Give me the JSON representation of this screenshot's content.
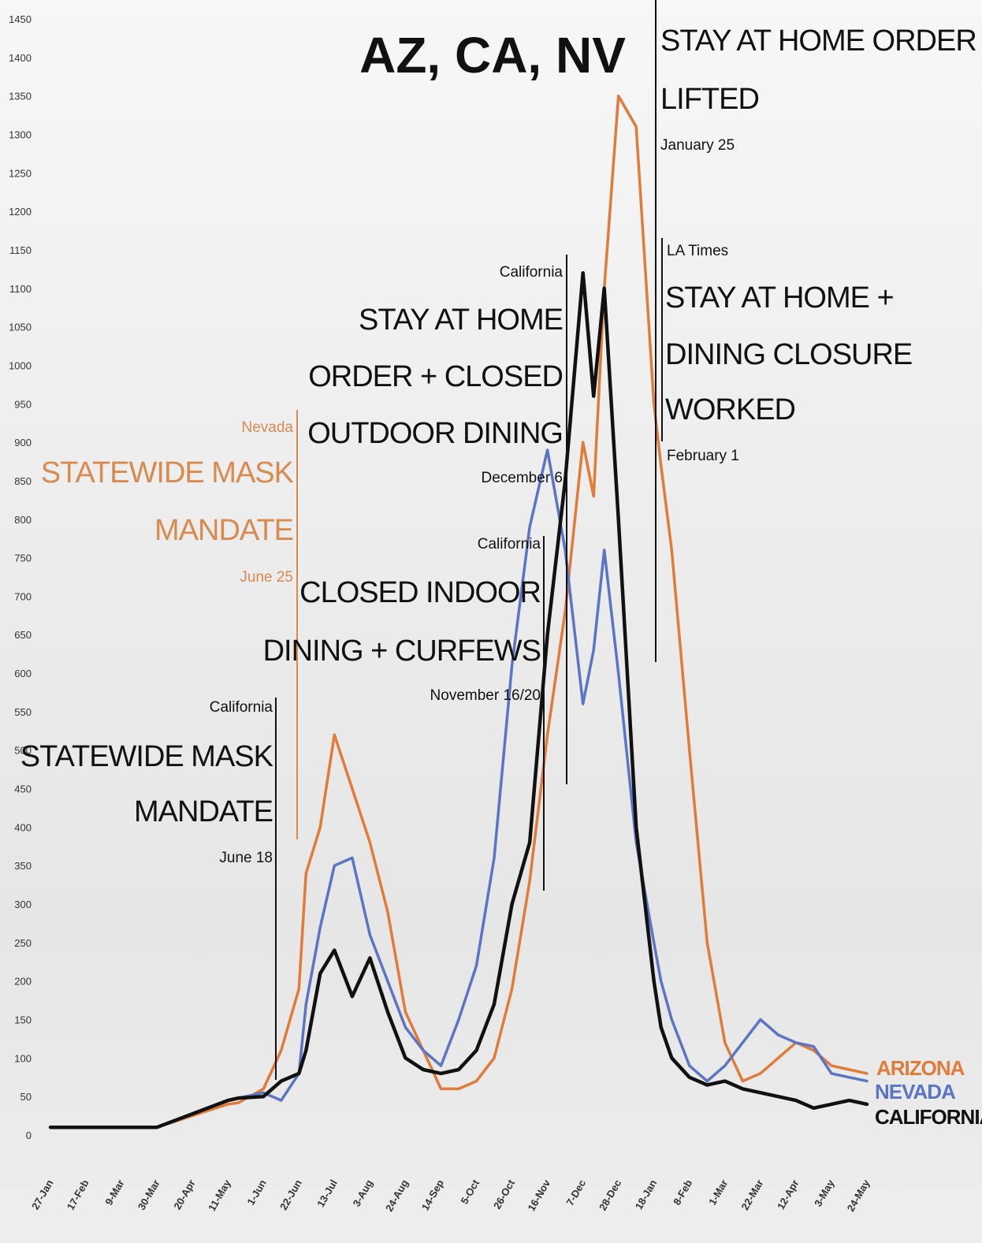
{
  "chart_data": {
    "type": "line",
    "title": "AZ, CA, NV",
    "xlabel": "",
    "ylabel": "",
    "ylim": [
      0,
      1450
    ],
    "yticks": [
      0,
      50,
      100,
      150,
      200,
      250,
      300,
      350,
      400,
      450,
      500,
      550,
      600,
      650,
      700,
      750,
      800,
      850,
      900,
      950,
      1000,
      1050,
      1100,
      1150,
      1200,
      1250,
      1300,
      1350,
      1400,
      1450
    ],
    "x_categories": [
      "27-Jan",
      "17-Feb",
      "9-Mar",
      "30-Mar",
      "20-Apr",
      "11-May",
      "1-Jun",
      "22-Jun",
      "13-Jul",
      "3-Aug",
      "24-Aug",
      "14-Sep",
      "5-Oct",
      "26-Oct",
      "16-Nov",
      "7-Dec",
      "28-Dec",
      "18-Jan",
      "8-Feb",
      "1-Mar",
      "22-Mar",
      "12-Apr",
      "3-May",
      "24-May"
    ],
    "grid": false,
    "legend_placement": "right",
    "series": [
      {
        "name": "ARIZONA",
        "color": "#e07b39",
        "x": [
          0,
          3,
          5,
          5.3,
          6,
          6.5,
          7,
          7.2,
          7.6,
          8,
          8.5,
          9,
          9.5,
          10,
          10.5,
          11,
          11.5,
          12,
          12.5,
          13,
          13.5,
          14,
          14.5,
          15,
          15.3,
          15.6,
          16,
          16.5,
          17,
          17.2,
          17.5,
          18,
          18.5,
          19,
          19.5,
          20,
          20.5,
          21,
          21.5,
          22,
          22.5,
          23
        ],
        "y": [
          10,
          10,
          40,
          42,
          60,
          110,
          190,
          340,
          400,
          520,
          450,
          380,
          290,
          160,
          110,
          60,
          60,
          70,
          100,
          190,
          330,
          520,
          680,
          900,
          830,
          1100,
          1350,
          1310,
          950,
          870,
          760,
          500,
          250,
          120,
          70,
          80,
          100,
          120,
          110,
          90,
          85,
          80
        ]
      },
      {
        "name": "NEVADA",
        "color": "#5a75c3",
        "x": [
          0,
          3,
          5,
          5.3,
          6,
          6.5,
          7,
          7.2,
          7.6,
          8,
          8.5,
          9,
          9.5,
          10,
          10.5,
          11,
          11.5,
          12,
          12.5,
          13,
          13.5,
          14,
          14.5,
          15,
          15.3,
          15.6,
          16,
          16.5,
          17,
          17.2,
          17.5,
          18,
          18.5,
          19,
          19.5,
          20,
          20.5,
          21,
          21.5,
          22,
          22.5,
          23
        ],
        "y": [
          10,
          10,
          45,
          48,
          55,
          45,
          80,
          170,
          270,
          350,
          360,
          260,
          200,
          140,
          110,
          90,
          150,
          220,
          360,
          610,
          790,
          890,
          760,
          560,
          630,
          760,
          600,
          380,
          250,
          200,
          150,
          90,
          70,
          90,
          120,
          150,
          130,
          120,
          115,
          80,
          75,
          70
        ]
      },
      {
        "name": "CALIFORNIA",
        "color": "#111111",
        "x": [
          0,
          3,
          5,
          5.3,
          6,
          6.5,
          7,
          7.2,
          7.6,
          8,
          8.5,
          9,
          9.5,
          10,
          10.5,
          11,
          11.5,
          12,
          12.5,
          13,
          13.5,
          14,
          14.5,
          15,
          15.3,
          15.6,
          16,
          16.5,
          17,
          17.2,
          17.5,
          18,
          18.5,
          19,
          19.5,
          20,
          20.5,
          21,
          21.5,
          22,
          22.5,
          23
        ],
        "y": [
          10,
          10,
          45,
          48,
          50,
          70,
          80,
          110,
          210,
          240,
          180,
          230,
          160,
          100,
          85,
          80,
          85,
          110,
          170,
          300,
          380,
          650,
          850,
          1120,
          960,
          1100,
          800,
          400,
          200,
          140,
          100,
          75,
          65,
          70,
          60,
          55,
          50,
          45,
          35,
          40,
          45,
          40
        ]
      }
    ],
    "annotations": [
      {
        "state": "Nevada",
        "text": [
          "STATEWIDE MASK",
          "MANDATE"
        ],
        "date": "June 25"
      },
      {
        "state": "California",
        "text": [
          "STATEWIDE MASK",
          "MANDATE"
        ],
        "date": "June 18"
      },
      {
        "state": "California",
        "text": [
          "CLOSED INDOOR",
          "DINING + CURFEWS"
        ],
        "date": "November 16/20"
      },
      {
        "state": "California",
        "text": [
          "STAY AT HOME",
          "ORDER + CLOSED",
          "OUTDOOR DINING"
        ],
        "date": "December 6"
      },
      {
        "state": "California",
        "text": [
          "STAY AT HOME ORDER",
          "LIFTED"
        ],
        "date": "January 25"
      },
      {
        "state": "LA Times",
        "text": [
          "STAY AT HOME +",
          "DINING CLOSURE",
          "WORKED"
        ],
        "date": "February 1"
      }
    ]
  }
}
